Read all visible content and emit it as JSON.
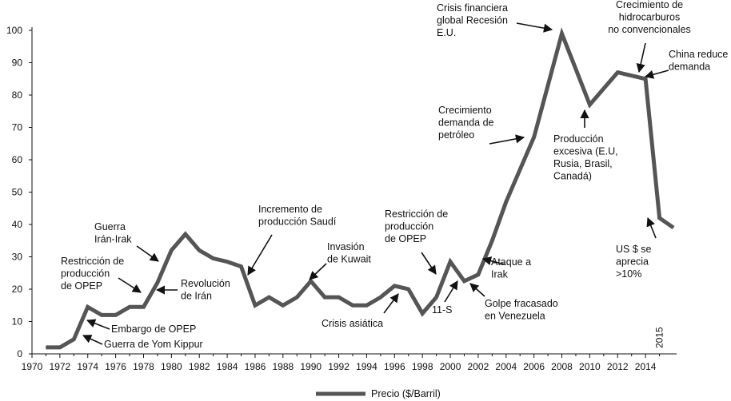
{
  "chart_data": {
    "type": "line",
    "title": "",
    "xlabel": "",
    "ylabel": "",
    "xlim": [
      1970,
      2016
    ],
    "ylim": [
      0,
      100
    ],
    "grid": false,
    "legend_position": "bottom",
    "x_ticks": [
      "1970",
      "1972",
      "1974",
      "1976",
      "1978",
      "1980",
      "1982",
      "1984",
      "1986",
      "1988",
      "1990",
      "1992",
      "1994",
      "1996",
      "1998",
      "2000",
      "2002",
      "2004",
      "2006",
      "2008",
      "2010",
      "2012",
      "2014"
    ],
    "y_ticks": [
      "0",
      "10",
      "20",
      "30",
      "40",
      "50",
      "60",
      "70",
      "80",
      "90",
      "100"
    ],
    "extra_x_label": "2015",
    "series": [
      {
        "name": "Precio ($/Barril)",
        "color": "#555555",
        "x": [
          1971,
          1972,
          1973,
          1974,
          1975,
          1976,
          1977,
          1978,
          1979,
          1980,
          1981,
          1982,
          1983,
          1984,
          1985,
          1986,
          1987,
          1988,
          1989,
          1990,
          1991,
          1992,
          1993,
          1994,
          1995,
          1996,
          1997,
          1998,
          1999,
          2000,
          2001,
          2002,
          2003,
          2004,
          2005,
          2006,
          2007,
          2008,
          2009,
          2010,
          2011,
          2012,
          2013,
          2014,
          2015,
          2016
        ],
        "y": [
          2,
          2,
          4.5,
          14.5,
          12,
          12,
          14.5,
          14.5,
          22,
          32,
          37,
          32,
          29.5,
          28.5,
          27,
          15,
          17.5,
          15,
          17.5,
          22.5,
          17.5,
          17.5,
          15,
          15,
          17.5,
          21,
          20,
          12.5,
          17.5,
          28.5,
          22.5,
          24.5,
          35,
          47,
          57,
          67,
          83,
          99,
          88,
          77,
          82,
          87,
          86,
          85,
          42,
          39
        ]
      }
    ],
    "annotations": [
      {
        "id": "crisis-2008",
        "lines": [
          "Crisis financiera",
          "global Recesión",
          "E.U."
        ]
      },
      {
        "id": "hidrocarburos",
        "lines": [
          "Crecimiento de",
          "hidrocarburos",
          "no convencionales"
        ]
      },
      {
        "id": "china",
        "lines": [
          "China reduce",
          "demanda"
        ]
      },
      {
        "id": "crecimiento-demanda",
        "lines": [
          "Crecimiento",
          "demanda de",
          "petróleo"
        ]
      },
      {
        "id": "produccion-excesiva",
        "lines": [
          "Producción",
          "excesiva (E.U,",
          "Rusia, Brasil,",
          "Canadá)"
        ]
      },
      {
        "id": "us-dollar",
        "lines": [
          "US $ se",
          "aprecia",
          ">10%"
        ]
      },
      {
        "id": "saudi",
        "lines": [
          "Incremento de",
          "producción Saudí"
        ]
      },
      {
        "id": "restriccion-2000",
        "lines": [
          "Restricción de",
          "producción",
          "de OPEP"
        ]
      },
      {
        "id": "kuwait",
        "lines": [
          "Invasión",
          "de Kuwait"
        ]
      },
      {
        "id": "ataque-irak",
        "lines": [
          "Ataque a",
          "Irak"
        ]
      },
      {
        "id": "guerra-iran-irak",
        "lines": [
          "Guerra",
          "Irán-Irak"
        ]
      },
      {
        "id": "restriccion-1979",
        "lines": [
          "Restricción de",
          "producción",
          "de OPEP"
        ]
      },
      {
        "id": "revolucion-iran",
        "lines": [
          "Revolución",
          "de Irán"
        ]
      },
      {
        "id": "embargo",
        "lines": [
          "Embargo de OPEP"
        ]
      },
      {
        "id": "yom-kippur",
        "lines": [
          "Guerra de Yom Kippur"
        ]
      },
      {
        "id": "crisis-asiatica",
        "lines": [
          "Crisis asiática"
        ]
      },
      {
        "id": "once-s",
        "lines": [
          "11-S"
        ]
      },
      {
        "id": "golpe-venezuela",
        "lines": [
          "Golpe fracasado",
          "en Venezuela"
        ]
      }
    ]
  }
}
